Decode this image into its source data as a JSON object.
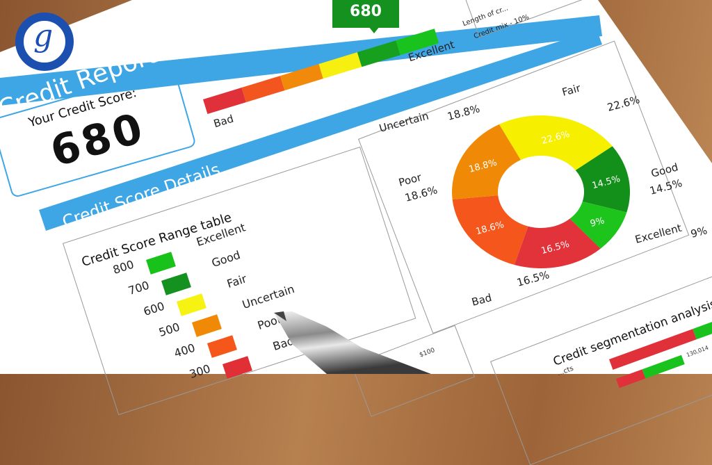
{
  "report": {
    "title": "Credit Report",
    "score_label": "Your Credit Score:",
    "score": "680"
  },
  "gauge": {
    "low_label": "Bad",
    "high_label": "Excellent",
    "marker": "680",
    "colors": [
      "#e0303a",
      "#f2561e",
      "#f18a0a",
      "#f6ef10",
      "#16a01e",
      "#1ac21e"
    ]
  },
  "factors": {
    "partial": "Length of cr...",
    "mix": "Credit mix - 10%"
  },
  "details": {
    "title": "Credit Score Details"
  },
  "range_table": {
    "title": "Credit Score Range table",
    "rows": [
      {
        "score": "800",
        "label": "Excellent",
        "color": "#19c21a"
      },
      {
        "score": "700",
        "label": "Good",
        "color": "#15911f"
      },
      {
        "score": "600",
        "label": "Fair",
        "color": "#f6f312"
      },
      {
        "score": "500",
        "label": "Uncertain",
        "color": "#f08a06"
      },
      {
        "score": "400",
        "label": "Poor",
        "color": "#f5571b"
      },
      {
        "score": "300",
        "label": "Bad",
        "color": "#e03036"
      }
    ]
  },
  "chart_data": {
    "type": "pie",
    "donut": true,
    "slices": [
      {
        "label": "Fair",
        "value": 22.6,
        "text": "22.6%",
        "color": "#f6f000"
      },
      {
        "label": "Good",
        "value": 14.5,
        "text": "14.5%",
        "color": "#139019"
      },
      {
        "label": "Excellent",
        "value": 9,
        "text": "9%",
        "color": "#1cc41c"
      },
      {
        "label": "Bad",
        "value": 16.5,
        "text": "16.5%",
        "color": "#e2333a"
      },
      {
        "label": "Poor",
        "value": 18.6,
        "text": "18.6%",
        "color": "#f4561c"
      },
      {
        "label": "Uncertain",
        "value": 18.8,
        "text": "18.8%",
        "color": "#f08a06"
      }
    ]
  },
  "segmentation": {
    "title": "Credit segmentation analysis",
    "value": "130,014",
    "row_label": "...cts"
  },
  "mini_chart": {
    "tick": "$100"
  }
}
